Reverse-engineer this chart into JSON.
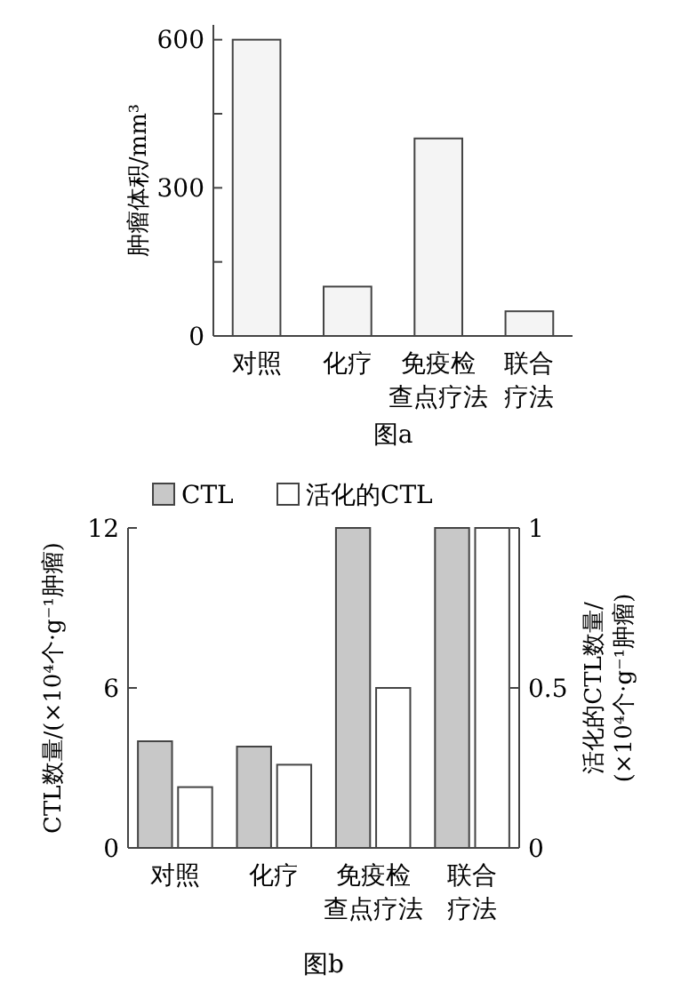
{
  "chart_data": [
    {
      "type": "bar",
      "ylabel": "肿瘤体积/mm³",
      "categories": [
        "对照",
        "化疗",
        "免疫检查点疗法",
        "联合疗法"
      ],
      "values": [
        600,
        100,
        400,
        50
      ],
      "color": "#f4f4f4",
      "ylim": [
        0,
        630
      ],
      "yticks": [
        0,
        {
          "value": 150,
          "label": null
        },
        300,
        {
          "value": 450,
          "label": null
        },
        600
      ],
      "grid": false,
      "legend": false,
      "annotations": [
        "图a"
      ]
    },
    {
      "type": "bar",
      "ylabel": "CTL数量/(×10⁴个·g⁻¹肿瘤)",
      "y2label": "活化的CTL数量/(×10⁴个·g⁻¹肿瘤)",
      "categories": [
        "对照",
        "化疗",
        "免疫检查点疗法",
        "联合疗法"
      ],
      "series": [
        {
          "name": "CTL",
          "color": "#c8c8c8",
          "values": [
            4,
            3.8,
            12,
            12
          ]
        },
        {
          "name": "活化的CTL",
          "color": "#ffffff",
          "values": [
            0.19,
            0.26,
            0.5,
            1
          ],
          "axis": "y2"
        }
      ],
      "ylim": [
        0,
        12
      ],
      "yticks": [
        0,
        6,
        12
      ],
      "y2lim": [
        0,
        1
      ],
      "y2ticks": [
        0,
        0.5,
        1
      ],
      "grid": false,
      "legend": "top",
      "annotations": [
        "图b"
      ]
    }
  ]
}
